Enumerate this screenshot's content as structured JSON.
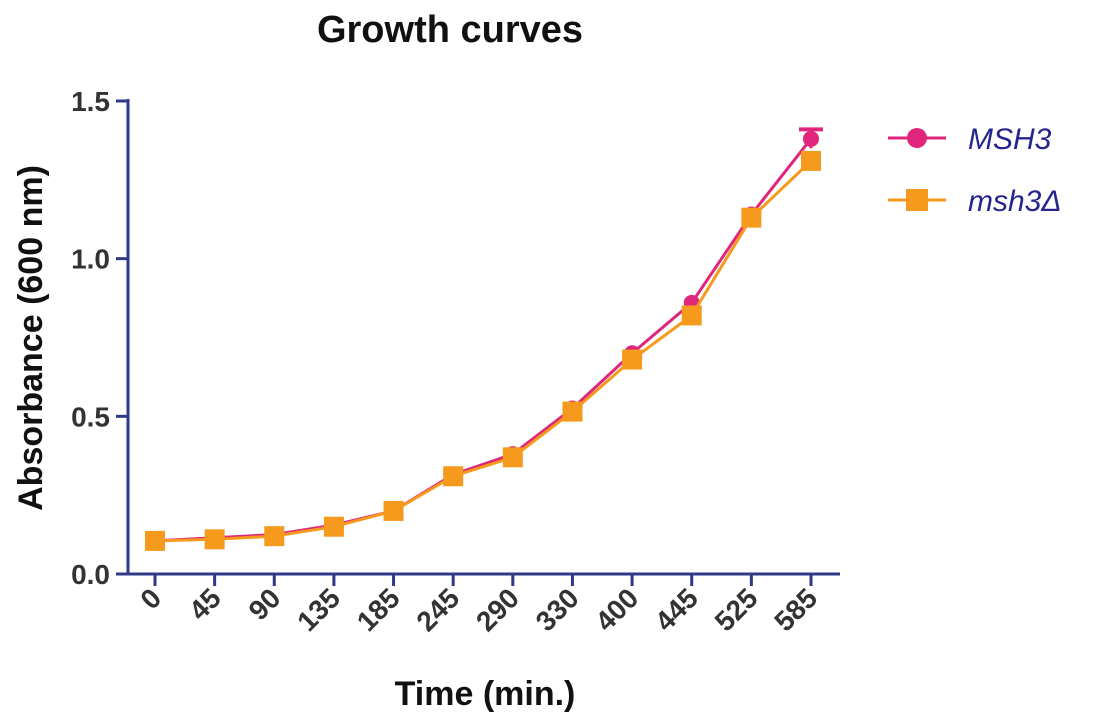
{
  "chart_data": {
    "type": "line",
    "title": "Growth curves",
    "xlabel": "Time  (min.)",
    "ylabel": "Absorbance (600 nm)",
    "categories": [
      "0",
      "45",
      "90",
      "135",
      "185",
      "245",
      "290",
      "330",
      "400",
      "445",
      "525",
      "585"
    ],
    "ylim": [
      0,
      1.5
    ],
    "yticks": [
      "0.0",
      "0.5",
      "1.0",
      "1.5"
    ],
    "grid": false,
    "legend_position": "top-right",
    "axis_color": "#2e3a87",
    "series": [
      {
        "name": "MSH3",
        "marker": "circle",
        "color": "#e0267c",
        "values": [
          0.105,
          0.115,
          0.125,
          0.155,
          0.2,
          0.315,
          0.38,
          0.525,
          0.7,
          0.86,
          1.14,
          1.38
        ],
        "error_last": 0.03
      },
      {
        "name": "msh3Δ",
        "marker": "square",
        "color": "#f59a1c",
        "values": [
          0.105,
          0.11,
          0.12,
          0.15,
          0.2,
          0.31,
          0.37,
          0.515,
          0.68,
          0.82,
          1.13,
          1.31
        ]
      }
    ],
    "legend_text_color": "#24248f"
  }
}
